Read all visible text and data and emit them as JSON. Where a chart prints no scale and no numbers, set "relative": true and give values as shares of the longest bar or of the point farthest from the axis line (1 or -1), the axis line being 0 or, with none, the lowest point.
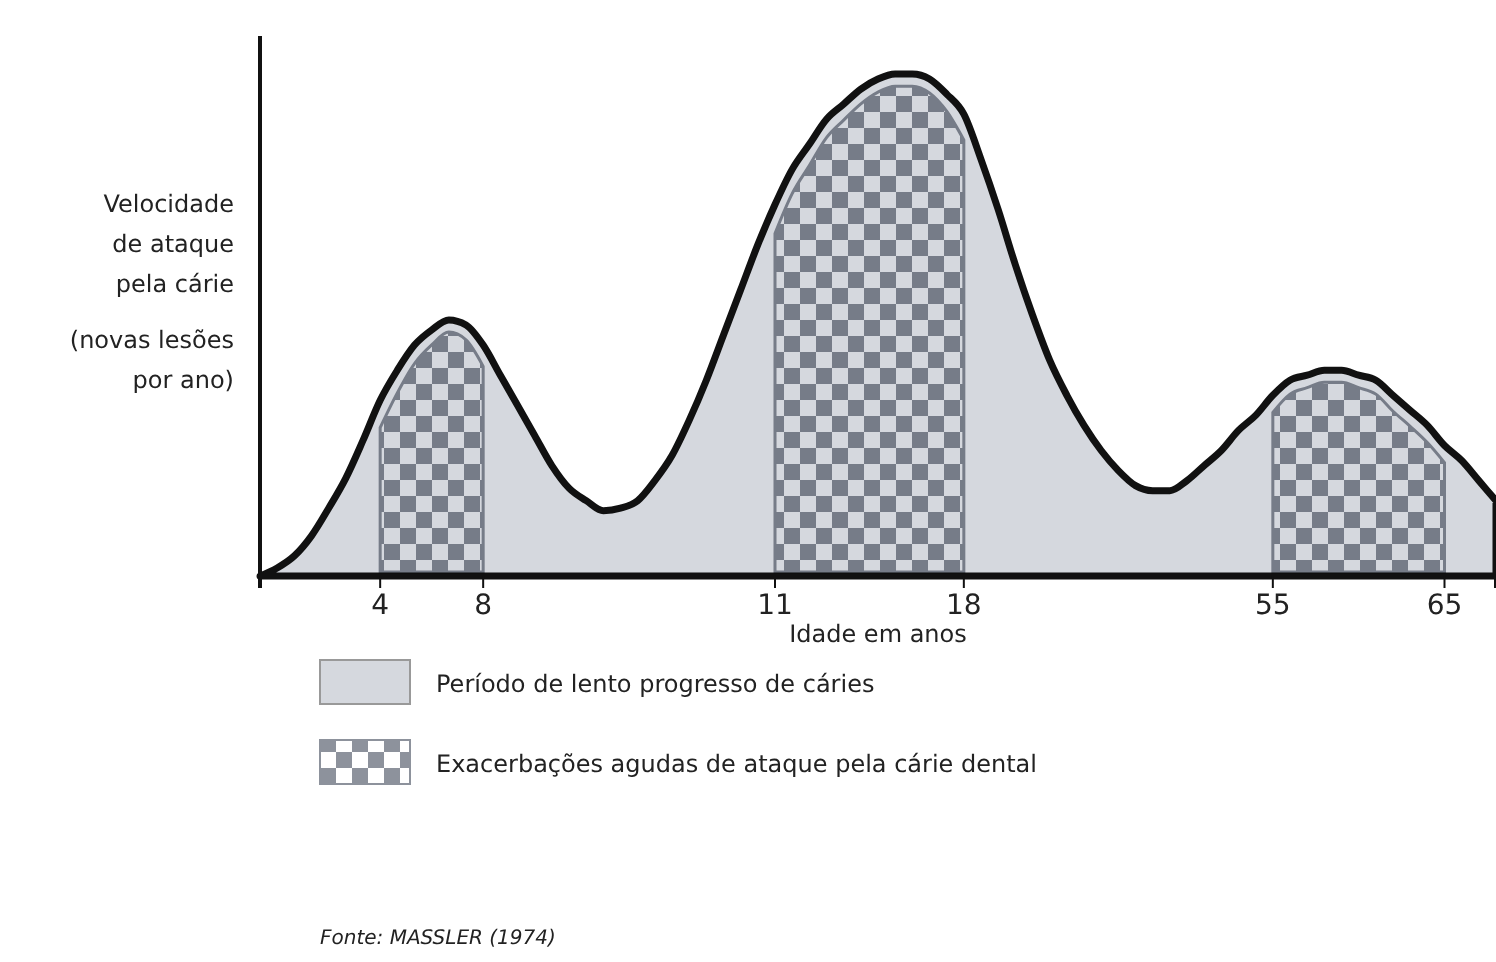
{
  "chart_data": {
    "type": "area",
    "relative": true,
    "xlabel": "Idade em anos",
    "ylabel": "Velocidade de ataque pela cárie",
    "legend": "bottom",
    "categories": [
      null,
      null,
      null,
      null,
      null,
      null,
      null,
      "4",
      null,
      null,
      null,
      null,
      null,
      "8",
      null,
      null,
      null,
      null,
      null,
      null,
      null,
      null,
      null,
      null,
      null,
      null,
      null,
      null,
      null,
      null,
      "11",
      null,
      null,
      null,
      null,
      null,
      null,
      null,
      null,
      null,
      null,
      "18",
      null,
      null,
      null,
      null,
      null,
      null,
      null,
      null,
      null,
      null,
      null,
      null,
      null,
      null,
      null,
      null,
      null,
      "55",
      null,
      null,
      null,
      null,
      null,
      null,
      null,
      null,
      null,
      "65",
      null,
      null,
      null
    ],
    "series": [
      {
        "name": "Período de lento progresso de cáries",
        "color": "#d5d8de",
        "values": [
          0,
          0.016,
          0.04,
          0.08,
          0.135,
          0.195,
          0.27,
          0.35,
          0.41,
          0.46,
          0.49,
          0.51,
          0.5,
          0.46,
          0.4,
          0.34,
          0.28,
          0.22,
          0.175,
          0.15,
          0.13,
          0.135,
          0.15,
          0.19,
          0.24,
          0.31,
          0.39,
          0.48,
          0.57,
          0.66,
          0.74,
          0.81,
          0.86,
          0.91,
          0.94,
          0.97,
          0.99,
          1,
          1,
          0.99,
          0.96,
          0.92,
          0.83,
          0.73,
          0.62,
          0.52,
          0.43,
          0.36,
          0.3,
          0.25,
          0.21,
          0.18,
          0.17,
          0.17,
          0.19,
          0.22,
          0.25,
          0.29,
          0.32,
          0.36,
          0.39,
          0.4,
          0.41,
          0.41,
          0.4,
          0.39,
          0.36,
          0.33,
          0.3,
          0.26,
          0.23,
          0.19,
          0.15
        ]
      }
    ],
    "bands": [
      {
        "axis": "x",
        "from": "4",
        "to": "8",
        "label": "Exacerbações agudas de ataque pela cárie dental",
        "color": "#8d929c"
      },
      {
        "axis": "x",
        "from": "11",
        "to": "18",
        "color": "#8d929c"
      },
      {
        "axis": "x",
        "from": "55",
        "to": "65",
        "color": "#8d929c"
      }
    ],
    "annotations": [
      "(novas lesões por ano)",
      "Fonte: MASSLER (1974)"
    ]
  }
}
